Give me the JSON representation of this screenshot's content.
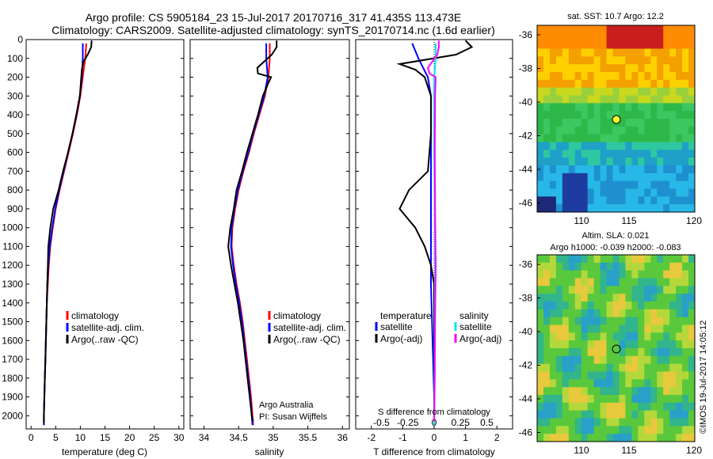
{
  "header": {
    "line1": "Argo profile: CS 5905184_23 15-Jul-2017 20170716_317 41.435S 113.473E",
    "line2": "Climatology: CARS2009. Satellite-adjusted climatology: synTS_20170714.nc (1.6d earlier)"
  },
  "colors": {
    "climatology": "#ff0000",
    "satellite": "#0000ff",
    "argo": "#000000",
    "sat_salinity": "#00e5ee",
    "argo_salinity": "#ff00ff"
  },
  "depth_axis": {
    "ticks": [
      "0",
      "100",
      "200",
      "300",
      "400",
      "500",
      "600",
      "700",
      "800",
      "900",
      "1000",
      "1100",
      "1200",
      "1300",
      "1400",
      "1500",
      "1600",
      "1700",
      "1800",
      "1900",
      "2000"
    ],
    "ylim": [
      0,
      2070
    ]
  },
  "panels": {
    "temperature": {
      "xlabel": "temperature (deg C)",
      "xticks": [
        "0",
        "5",
        "10",
        "15",
        "20",
        "25",
        "30"
      ],
      "legend": [
        "climatology",
        "satellite-adj. clim.",
        "Argo(..raw -QC)"
      ]
    },
    "salinity": {
      "xlabel": "salinity",
      "xticks": [
        "34",
        "34.5",
        "35",
        "35.5",
        "36"
      ],
      "legend": [
        "climatology",
        "satellite-adj. clim.",
        "Argo(..raw -QC)"
      ],
      "annotation1": "Argo Australia",
      "annotation2": "PI: Susan Wijffels"
    },
    "difference": {
      "xlabel": "T difference from climatology",
      "top_label": "S difference from climatology",
      "xticks": [
        "-2",
        "-1",
        "0",
        "1",
        "2"
      ],
      "sticks": [
        "-0.5",
        "-0.25",
        "0",
        "0.25",
        "0.5"
      ],
      "legend_temp_title": "temperature",
      "legend_sal_title": "salinity",
      "legend_temp": [
        "satellite",
        "Argo(-adj)"
      ],
      "legend_sal": [
        "satellite",
        "Argo(-adj)"
      ]
    }
  },
  "sst_map": {
    "title": "sat. SST: 10.7  Argo: 12.2",
    "yticks": [
      "-36",
      "-38",
      "-40",
      "-42",
      "-44",
      "-46"
    ],
    "xticks": [
      "110",
      "115",
      "120"
    ]
  },
  "sla_map": {
    "title1": "Altim. SLA: 0.021",
    "title2": "Argo h1000: -0.039 h2000: -0.083",
    "yticks": [
      "-36",
      "-38",
      "-40",
      "-42",
      "-44",
      "-46"
    ],
    "xticks": [
      "110",
      "115",
      "120"
    ]
  },
  "footer": {
    "credit": "©IMOS 19-Jul-2017 14:05:12"
  },
  "chart_data": [
    {
      "type": "line",
      "title": "",
      "xlabel": "temperature (deg C)",
      "ylabel": "",
      "xlim": [
        -1,
        31
      ],
      "ylim": [
        2070,
        0
      ],
      "series": [
        {
          "name": "climatology",
          "points": [
            [
              11.2,
              20
            ],
            [
              11.0,
              100
            ],
            [
              10.5,
              200
            ],
            [
              10.0,
              300
            ],
            [
              9.3,
              400
            ],
            [
              8.5,
              500
            ],
            [
              7.6,
              600
            ],
            [
              6.7,
              700
            ],
            [
              5.8,
              800
            ],
            [
              5.0,
              900
            ],
            [
              4.4,
              1000
            ],
            [
              3.9,
              1100
            ],
            [
              3.6,
              1200
            ],
            [
              3.4,
              1300
            ],
            [
              3.2,
              1400
            ],
            [
              3.1,
              1500
            ],
            [
              3.0,
              1600
            ],
            [
              2.9,
              1700
            ],
            [
              2.8,
              1800
            ],
            [
              2.7,
              1900
            ],
            [
              2.6,
              2000
            ],
            [
              2.6,
              2050
            ]
          ]
        },
        {
          "name": "satellite-adj. clim.",
          "points": [
            [
              10.5,
              20
            ],
            [
              10.5,
              100
            ],
            [
              10.3,
              200
            ],
            [
              9.9,
              300
            ],
            [
              9.2,
              400
            ],
            [
              8.4,
              500
            ],
            [
              7.5,
              600
            ],
            [
              6.6,
              700
            ],
            [
              5.7,
              800
            ],
            [
              4.9,
              900
            ],
            [
              4.3,
              1000
            ],
            [
              3.8,
              1100
            ],
            [
              3.5,
              1200
            ],
            [
              3.3,
              1300
            ],
            [
              3.2,
              1400
            ],
            [
              3.1,
              1500
            ],
            [
              3.0,
              1600
            ],
            [
              2.9,
              1700
            ],
            [
              2.8,
              1800
            ],
            [
              2.7,
              1900
            ],
            [
              2.6,
              2000
            ],
            [
              2.6,
              2050
            ]
          ]
        },
        {
          "name": "Argo(..raw -QC)",
          "points": [
            [
              12.3,
              5
            ],
            [
              12.2,
              40
            ],
            [
              11.5,
              80
            ],
            [
              10.6,
              120
            ],
            [
              10.3,
              160
            ],
            [
              10.2,
              200
            ],
            [
              9.9,
              300
            ],
            [
              9.2,
              400
            ],
            [
              8.4,
              500
            ],
            [
              7.5,
              600
            ],
            [
              6.5,
              700
            ],
            [
              5.6,
              800
            ],
            [
              4.5,
              900
            ],
            [
              3.9,
              1000
            ],
            [
              3.5,
              1100
            ],
            [
              3.4,
              1200
            ],
            [
              3.3,
              1300
            ],
            [
              3.2,
              1400
            ],
            [
              3.1,
              1500
            ],
            [
              3.0,
              1600
            ],
            [
              2.9,
              1700
            ],
            [
              2.8,
              1800
            ],
            [
              2.7,
              1900
            ],
            [
              2.6,
              2000
            ],
            [
              2.6,
              2040
            ]
          ]
        }
      ]
    },
    {
      "type": "line",
      "title": "",
      "xlabel": "salinity",
      "ylabel": "",
      "xlim": [
        33.8,
        36.1
      ],
      "ylim": [
        2070,
        0
      ],
      "series": [
        {
          "name": "climatology",
          "points": [
            [
              34.95,
              20
            ],
            [
              34.95,
              100
            ],
            [
              34.93,
              200
            ],
            [
              34.88,
              300
            ],
            [
              34.8,
              400
            ],
            [
              34.72,
              500
            ],
            [
              34.65,
              600
            ],
            [
              34.57,
              700
            ],
            [
              34.5,
              800
            ],
            [
              34.45,
              900
            ],
            [
              34.41,
              1000
            ],
            [
              34.4,
              1100
            ],
            [
              34.43,
              1200
            ],
            [
              34.47,
              1300
            ],
            [
              34.52,
              1400
            ],
            [
              34.56,
              1500
            ],
            [
              34.59,
              1600
            ],
            [
              34.62,
              1700
            ],
            [
              34.65,
              1800
            ],
            [
              34.68,
              1900
            ],
            [
              34.7,
              2000
            ],
            [
              34.71,
              2050
            ]
          ]
        },
        {
          "name": "satellite-adj. clim.",
          "points": [
            [
              34.9,
              20
            ],
            [
              34.9,
              100
            ],
            [
              34.92,
              200
            ],
            [
              34.87,
              300
            ],
            [
              34.79,
              400
            ],
            [
              34.71,
              500
            ],
            [
              34.64,
              600
            ],
            [
              34.56,
              700
            ],
            [
              34.49,
              800
            ],
            [
              34.44,
              900
            ],
            [
              34.4,
              1000
            ],
            [
              34.39,
              1100
            ],
            [
              34.42,
              1200
            ],
            [
              34.46,
              1300
            ],
            [
              34.51,
              1400
            ],
            [
              34.55,
              1500
            ],
            [
              34.58,
              1600
            ],
            [
              34.61,
              1700
            ],
            [
              34.64,
              1800
            ],
            [
              34.67,
              1900
            ],
            [
              34.69,
              2000
            ],
            [
              34.7,
              2050
            ]
          ]
        },
        {
          "name": "Argo(..raw -QC)",
          "points": [
            [
              35.05,
              5
            ],
            [
              35.05,
              40
            ],
            [
              34.98,
              80
            ],
            [
              34.77,
              150
            ],
            [
              34.78,
              180
            ],
            [
              34.97,
              200
            ],
            [
              34.93,
              230
            ],
            [
              34.85,
              300
            ],
            [
              34.78,
              400
            ],
            [
              34.7,
              500
            ],
            [
              34.62,
              600
            ],
            [
              34.55,
              700
            ],
            [
              34.47,
              800
            ],
            [
              34.43,
              900
            ],
            [
              34.38,
              1000
            ],
            [
              34.35,
              1100
            ],
            [
              34.39,
              1200
            ],
            [
              34.44,
              1300
            ],
            [
              34.49,
              1400
            ],
            [
              34.53,
              1500
            ],
            [
              34.57,
              1600
            ],
            [
              34.6,
              1700
            ],
            [
              34.63,
              1800
            ],
            [
              34.66,
              1900
            ],
            [
              34.69,
              2000
            ],
            [
              34.71,
              2030
            ]
          ]
        }
      ]
    },
    {
      "type": "line",
      "title": "",
      "xlabel": "T difference from climatology",
      "ylabel": "",
      "xlim": [
        -2.5,
        2.5
      ],
      "ylim": [
        2070,
        0
      ],
      "series": [
        {
          "name": "temperature satellite",
          "points": [
            [
              -0.7,
              20
            ],
            [
              -0.5,
              100
            ],
            [
              -0.2,
              200
            ],
            [
              -0.1,
              300
            ],
            [
              -0.1,
              500
            ],
            [
              -0.1,
              700
            ],
            [
              -0.1,
              900
            ],
            [
              -0.1,
              1100
            ],
            [
              -0.1,
              1300
            ],
            [
              -0.05,
              1600
            ],
            [
              0.0,
              1900
            ],
            [
              0.0,
              2050
            ]
          ]
        },
        {
          "name": "temperature Argo(-adj)",
          "points": [
            [
              1.0,
              5
            ],
            [
              1.2,
              40
            ],
            [
              0.7,
              80
            ],
            [
              -1.1,
              130
            ],
            [
              -0.6,
              160
            ],
            [
              -0.3,
              200
            ],
            [
              -0.1,
              300
            ],
            [
              -0.1,
              500
            ],
            [
              -0.2,
              700
            ],
            [
              -0.8,
              800
            ],
            [
              -1.1,
              900
            ],
            [
              -0.6,
              1000
            ],
            [
              -0.3,
              1100
            ],
            [
              -0.1,
              1200
            ],
            [
              0.0,
              1300
            ],
            [
              0.0,
              1500
            ],
            [
              0.0,
              1700
            ],
            [
              0.0,
              1900
            ],
            [
              0.0,
              2040
            ]
          ]
        },
        {
          "name": "salinity satellite",
          "points": [
            [
              0.05,
              20
            ],
            [
              0.05,
              100
            ],
            [
              0.0,
              200
            ],
            [
              0.0,
              300
            ],
            [
              0.0,
              600
            ],
            [
              0.02,
              900
            ],
            [
              0.03,
              1200
            ],
            [
              0.02,
              1500
            ],
            [
              0.01,
              1800
            ],
            [
              0.0,
              2050
            ]
          ]
        },
        {
          "name": "salinity Argo(-adj)",
          "points": [
            [
              0.15,
              5
            ],
            [
              0.15,
              40
            ],
            [
              0.1,
              80
            ],
            [
              -0.2,
              150
            ],
            [
              -0.15,
              180
            ],
            [
              0.05,
              200
            ],
            [
              0.03,
              300
            ],
            [
              0.02,
              600
            ],
            [
              0.03,
              900
            ],
            [
              0.05,
              1200
            ],
            [
              0.03,
              1500
            ],
            [
              0.02,
              1800
            ],
            [
              0.0,
              2030
            ]
          ]
        }
      ]
    }
  ]
}
